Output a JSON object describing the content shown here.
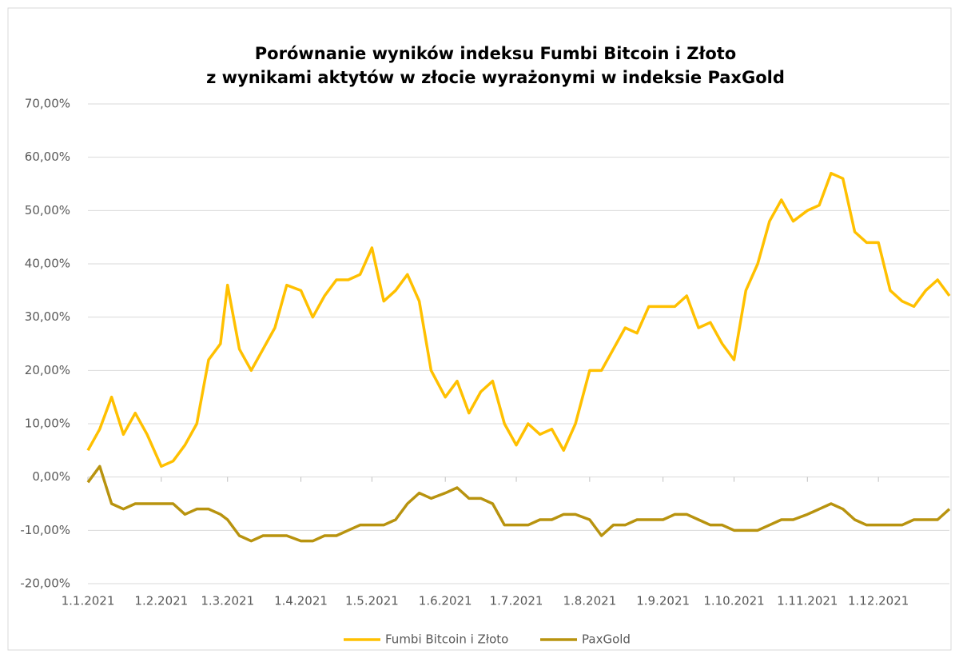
{
  "chart_data": {
    "type": "line",
    "title": [
      "Porównanie wyników indeksu Fumbi Bitcoin i Złoto",
      "z wynikami aktytów w złocie wyrażonymi w indeksie PaxGold"
    ],
    "x": [
      "1.1.2021",
      "6.1.2021",
      "11.1.2021",
      "16.1.2021",
      "21.1.2021",
      "26.1.2021",
      "1.2.2021",
      "6.2.2021",
      "11.2.2021",
      "16.2.2021",
      "21.2.2021",
      "26.2.2021",
      "1.3.2021",
      "6.3.2021",
      "11.3.2021",
      "16.3.2021",
      "21.3.2021",
      "26.3.2021",
      "1.4.2021",
      "6.4.2021",
      "11.4.2021",
      "16.4.2021",
      "21.4.2021",
      "26.4.2021",
      "1.5.2021",
      "6.5.2021",
      "11.5.2021",
      "16.5.2021",
      "21.5.2021",
      "26.5.2021",
      "1.6.2021",
      "6.6.2021",
      "11.6.2021",
      "16.6.2021",
      "21.6.2021",
      "26.6.2021",
      "1.7.2021",
      "6.7.2021",
      "11.7.2021",
      "16.7.2021",
      "21.7.2021",
      "26.7.2021",
      "1.8.2021",
      "6.8.2021",
      "11.8.2021",
      "16.8.2021",
      "21.8.2021",
      "26.8.2021",
      "1.9.2021",
      "6.9.2021",
      "11.9.2021",
      "16.9.2021",
      "21.9.2021",
      "26.9.2021",
      "1.10.2021",
      "6.10.2021",
      "11.10.2021",
      "16.10.2021",
      "21.10.2021",
      "26.10.2021",
      "1.11.2021",
      "6.11.2021",
      "11.11.2021",
      "16.11.2021",
      "21.11.2021",
      "26.11.2021",
      "1.12.2021",
      "6.12.2021",
      "11.12.2021",
      "16.12.2021",
      "21.12.2021",
      "26.12.2021",
      "31.12.2021"
    ],
    "series": [
      {
        "name": "Fumbi Bitcoin i Złoto",
        "color": "#ffc000",
        "values": [
          5,
          9,
          15,
          8,
          12,
          8,
          2,
          3,
          6,
          10,
          22,
          25,
          36,
          24,
          20,
          24,
          28,
          36,
          35,
          30,
          34,
          37,
          37,
          38,
          43,
          33,
          35,
          38,
          33,
          20,
          15,
          18,
          12,
          16,
          18,
          10,
          6,
          10,
          8,
          9,
          5,
          10,
          20,
          20,
          24,
          28,
          27,
          32,
          32,
          32,
          34,
          28,
          29,
          25,
          22,
          35,
          40,
          48,
          52,
          48,
          50,
          51,
          57,
          56,
          46,
          44,
          44,
          35,
          33,
          32,
          35,
          37,
          34
        ]
      },
      {
        "name": "PaxGold",
        "color": "#b8930f",
        "values": [
          -1,
          2,
          -5,
          -6,
          -5,
          -5,
          -5,
          -5,
          -7,
          -6,
          -6,
          -7,
          -8,
          -11,
          -12,
          -11,
          -11,
          -11,
          -12,
          -12,
          -11,
          -11,
          -10,
          -9,
          -9,
          -9,
          -8,
          -5,
          -3,
          -4,
          -3,
          -2,
          -4,
          -4,
          -5,
          -9,
          -9,
          -9,
          -8,
          -8,
          -7,
          -7,
          -8,
          -11,
          -9,
          -9,
          -8,
          -8,
          -8,
          -7,
          -7,
          -8,
          -9,
          -9,
          -10,
          -10,
          -10,
          -9,
          -8,
          -8,
          -7,
          -6,
          -5,
          -6,
          -8,
          -9,
          -9,
          -9,
          -9,
          -8,
          -8,
          -8,
          -6
        ]
      }
    ],
    "xlim": [
      "1.1.2021",
      "31.12.2021"
    ],
    "xticks": [
      "1.1.2021",
      "1.2.2021",
      "1.3.2021",
      "1.4.2021",
      "1.5.2021",
      "1.6.2021",
      "1.7.2021",
      "1.8.2021",
      "1.9.2021",
      "1.10.2021",
      "1.11.2021",
      "1.12.2021"
    ],
    "ylim": [
      -20,
      70
    ],
    "yticks": [
      {
        "value": -20,
        "label": "-20,00%"
      },
      {
        "value": -10,
        "label": "-10,00%"
      },
      {
        "value": 0,
        "label": "0,00%"
      },
      {
        "value": 10,
        "label": "10,00%"
      },
      {
        "value": 20,
        "label": "20,00%"
      },
      {
        "value": 30,
        "label": "30,00%"
      },
      {
        "value": 40,
        "label": "40,00%"
      },
      {
        "value": 50,
        "label": "50,00%"
      },
      {
        "value": 60,
        "label": "60,00%"
      },
      {
        "value": 70,
        "label": "70,00%"
      }
    ],
    "grid": true,
    "legend": "bottom"
  }
}
